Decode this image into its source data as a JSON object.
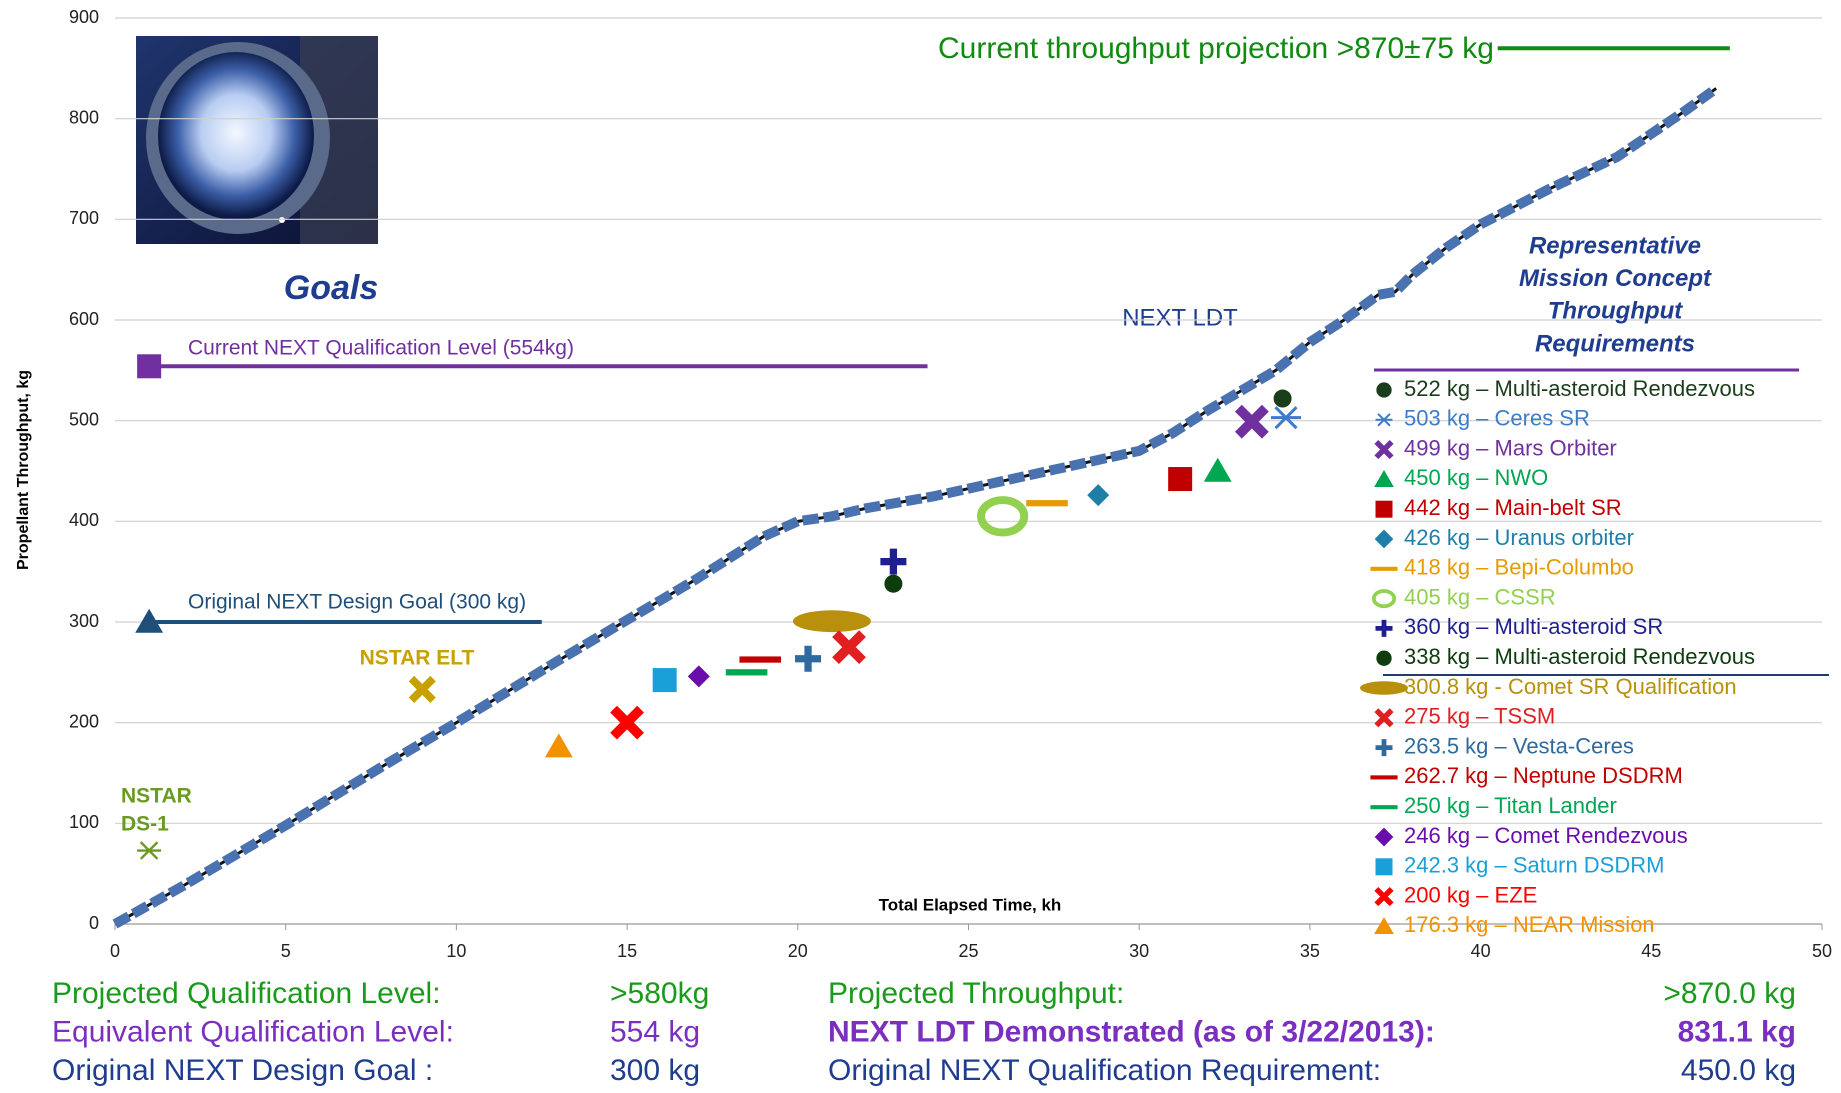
{
  "chart_data": {
    "type": "line",
    "x_label": "Total Elapsed Time, kh",
    "y_label": "Propellant Throughput, kg",
    "xlim": [
      0,
      50
    ],
    "xticks": [
      0,
      5,
      10,
      15,
      20,
      25,
      30,
      35,
      40,
      45,
      50
    ],
    "ylim": [
      0,
      900
    ],
    "yticks": [
      0,
      100,
      200,
      300,
      400,
      500,
      600,
      700,
      800,
      900
    ],
    "grid": true,
    "annotations": [
      "Goals"
    ],
    "series": [
      {
        "name": "NEXT LDT",
        "color": "#4a72b0",
        "x": [
          0,
          2,
          5,
          8,
          10,
          13,
          15,
          17,
          19,
          20,
          21,
          22,
          24,
          26,
          28,
          30,
          31,
          32,
          34,
          35,
          36,
          37,
          37.5,
          38,
          39,
          40,
          42,
          44,
          46,
          46.9
        ],
        "values": [
          0,
          38,
          98,
          160,
          200,
          262,
          302,
          342,
          385,
          400,
          405,
          413,
          425,
          440,
          455,
          470,
          488,
          510,
          550,
          578,
          600,
          625,
          628,
          645,
          672,
          695,
          730,
          762,
          808,
          830
        ]
      }
    ],
    "goals": [
      {
        "name": "Current NEXT Qualification Level (554kg)",
        "color": "#7030a0",
        "marker": "square",
        "x": [
          1,
          23.8
        ],
        "y": 554
      },
      {
        "name": "Original NEXT Design Goal (300 kg)",
        "color": "#1f4e79",
        "marker": "triangle",
        "x": [
          1,
          12.5
        ],
        "y": 300
      },
      {
        "name": "NSTAR ELT",
        "color": "#c8a000",
        "marker": "x",
        "x": [
          9
        ],
        "y": 233
      },
      {
        "name": [
          "NSTAR",
          "DS-1"
        ],
        "color": "#6a9a1f",
        "marker": "asterisk",
        "x": [
          1
        ],
        "y": 73
      },
      {
        "name": "Current throughput projection >870±75 kg",
        "color": "#108a10",
        "x": [
          40.5,
          47.3
        ],
        "y": 870
      }
    ],
    "legend_title": [
      "Representative",
      "Mission Concept",
      "Throughput",
      "Requirements"
    ],
    "missions": [
      {
        "name": "522 kg – Multi-asteroid Rendezvous",
        "color": "#1b3d1b",
        "marker": "circle",
        "x": [
          34.2
        ],
        "values": [
          522
        ]
      },
      {
        "name": "503 kg – Ceres SR",
        "color": "#3d7cc9",
        "marker": "asterisk",
        "x": [
          34.3
        ],
        "values": [
          503
        ]
      },
      {
        "name": "499 kg – Mars Orbiter",
        "color": "#7030a0",
        "marker": "x",
        "x": [
          33.3
        ],
        "values": [
          499
        ]
      },
      {
        "name": "450 kg – NWO",
        "color": "#00a650",
        "marker": "triangle",
        "x": [
          32.3
        ],
        "values": [
          450
        ]
      },
      {
        "name": "442 kg – Main-belt SR",
        "color": "#c00000",
        "marker": "square",
        "x": [
          31.2
        ],
        "values": [
          442
        ]
      },
      {
        "name": "426 kg – Uranus orbiter",
        "color": "#1f7fa8",
        "marker": "diamond",
        "x": [
          28.8
        ],
        "values": [
          426
        ]
      },
      {
        "name": "418 kg – Bepi-Columbo",
        "color": "#e69b00",
        "marker": "dash",
        "x": [
          27.3
        ],
        "values": [
          418
        ]
      },
      {
        "name": "405 kg – CSSR",
        "color": "#92d050",
        "marker": "ring",
        "x": [
          26
        ],
        "values": [
          405
        ]
      },
      {
        "name": "360 kg – Multi-asteroid SR",
        "color": "#1f1f8f",
        "marker": "plus",
        "x": [
          22.8
        ],
        "values": [
          360
        ]
      },
      {
        "name": "338 kg – Multi-asteroid Rendezvous",
        "color": "#0d3d0d",
        "marker": "circle",
        "x": [
          22.8
        ],
        "values": [
          338
        ]
      },
      {
        "name": "300.8 kg - Comet SR Qualification",
        "color": "#b8900b",
        "marker": "ellipse",
        "x": [
          21
        ],
        "values": [
          300.8
        ]
      },
      {
        "name": "275 kg – TSSM",
        "color": "#e02020",
        "marker": "x",
        "x": [
          21.5
        ],
        "values": [
          275
        ]
      },
      {
        "name": "263.5 kg – Vesta-Ceres",
        "color": "#2e6a9e",
        "marker": "plus",
        "x": [
          20.3
        ],
        "values": [
          263.5
        ]
      },
      {
        "name": "262.7 kg – Neptune DSDRM",
        "color": "#c00000",
        "marker": "dash",
        "x": [
          18.9
        ],
        "values": [
          262.7
        ]
      },
      {
        "name": "250 kg – Titan Lander",
        "color": "#00a650",
        "marker": "dash",
        "x": [
          18.5
        ],
        "values": [
          250
        ]
      },
      {
        "name": "246 kg – Comet Rendezvous",
        "color": "#6a0dad",
        "marker": "diamond",
        "x": [
          17.1
        ],
        "values": [
          246
        ]
      },
      {
        "name": "242.3 kg – Saturn DSDRM",
        "color": "#1aa0d8",
        "marker": "square",
        "x": [
          16.1
        ],
        "values": [
          242.3
        ]
      },
      {
        "name": "200 kg – EZE",
        "color": "#ff0000",
        "marker": "x",
        "x": [
          15
        ],
        "values": [
          200
        ]
      },
      {
        "name": "176.3 kg – NEAR Mission",
        "color": "#f39200",
        "marker": "triangle",
        "x": [
          13
        ],
        "values": [
          176.3
        ]
      }
    ]
  },
  "footer": {
    "left": [
      {
        "label": "Projected Qualification Level:",
        "value": ">580kg",
        "color": "#1a9a1a",
        "bold": false
      },
      {
        "label": "Equivalent Qualification Level:",
        "value": "554 kg",
        "color": "#7a2fc0",
        "bold": false
      },
      {
        "label": "Original NEXT Design Goal :",
        "value": "300 kg",
        "color": "#1f3d8f",
        "bold": false
      }
    ],
    "right": [
      {
        "label": "Projected Throughput:",
        "value": ">870.0 kg",
        "color": "#1a9a1a",
        "bold": false
      },
      {
        "label": "NEXT LDT Demonstrated (as of 3/22/2013):",
        "value": "831.1 kg",
        "color": "#7a2fc0",
        "bold": true
      },
      {
        "label": "Original NEXT Qualification Requirement:",
        "value": "450.0 kg",
        "color": "#1f3d8f",
        "bold": false
      }
    ]
  }
}
